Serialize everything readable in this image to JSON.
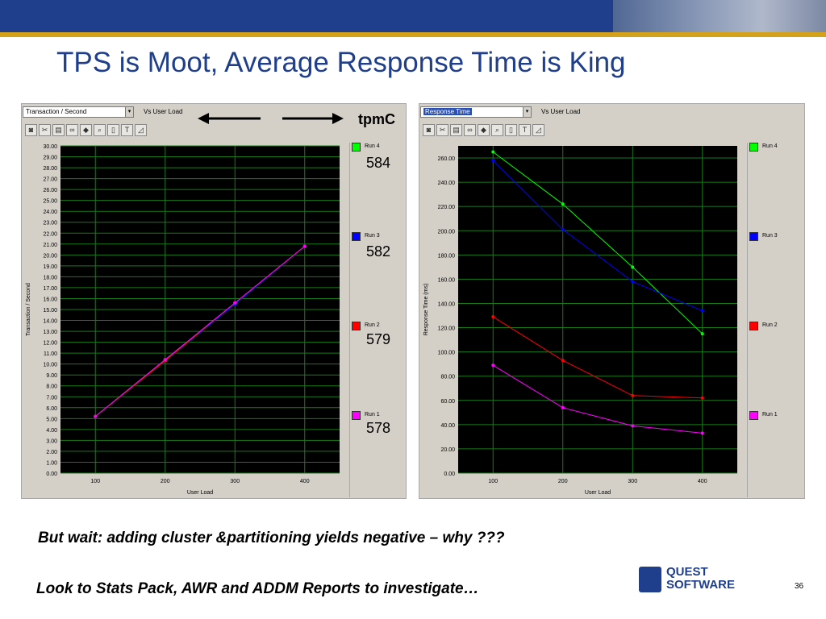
{
  "slide": {
    "title": "TPS is Moot, Average Response Time is King",
    "tpmc_label": "tpmC",
    "tpmc_values": [
      "584",
      "582",
      "579",
      "578"
    ],
    "note1": "But wait: adding cluster &partitioning yields negative – why ???",
    "note2": "Look to Stats Pack, AWR and ADDM Reports to investigate…",
    "logo_line1": "QUEST",
    "logo_line2": "SOFTWARE",
    "page_number": "36"
  },
  "left_panel": {
    "select_value": "Transaction / Second",
    "vs_label": "Vs User Load",
    "legend": [
      "Run 4",
      "Run 3",
      "Run 2",
      "Run 1"
    ]
  },
  "right_panel": {
    "select_value": "Response Time",
    "vs_label": "Vs User Load",
    "legend": [
      "Run 4",
      "Run 3",
      "Run 2",
      "Run 1"
    ]
  },
  "chart_data": [
    {
      "type": "line",
      "xlabel": "User Load",
      "ylabel": "Transaction / Second",
      "x": [
        100,
        200,
        300,
        400
      ],
      "ylim": [
        0,
        30
      ],
      "ytick_step": 1,
      "ytick_decimals": 2,
      "grid": true,
      "background": "#000000",
      "series": [
        {
          "name": "Run 4",
          "color": "#00ff00",
          "values": [
            5.2,
            10.4,
            15.6,
            20.8
          ]
        },
        {
          "name": "Run 3",
          "color": "#0000ff",
          "values": [
            5.2,
            10.3,
            15.5,
            20.8
          ]
        },
        {
          "name": "Run 2",
          "color": "#ff0000",
          "values": [
            5.2,
            10.3,
            15.6,
            20.8
          ]
        },
        {
          "name": "Run 1",
          "color": "#ff00ff",
          "values": [
            5.2,
            10.4,
            15.6,
            20.8
          ]
        }
      ]
    },
    {
      "type": "line",
      "xlabel": "User Load",
      "ylabel": "Response Time (ms)",
      "x": [
        100,
        200,
        300,
        400
      ],
      "ylim": [
        0,
        270
      ],
      "ytick_step": 20,
      "ytick_decimals": 2,
      "grid": true,
      "background": "#000000",
      "series": [
        {
          "name": "Run 4",
          "color": "#00ff00",
          "values": [
            265,
            222,
            170,
            115
          ]
        },
        {
          "name": "Run 3",
          "color": "#0000ff",
          "values": [
            258,
            201,
            158,
            134
          ]
        },
        {
          "name": "Run 2",
          "color": "#ff0000",
          "values": [
            129,
            93,
            64,
            62
          ]
        },
        {
          "name": "Run 1",
          "color": "#ff00ff",
          "values": [
            89,
            54,
            39,
            33
          ]
        }
      ]
    }
  ]
}
